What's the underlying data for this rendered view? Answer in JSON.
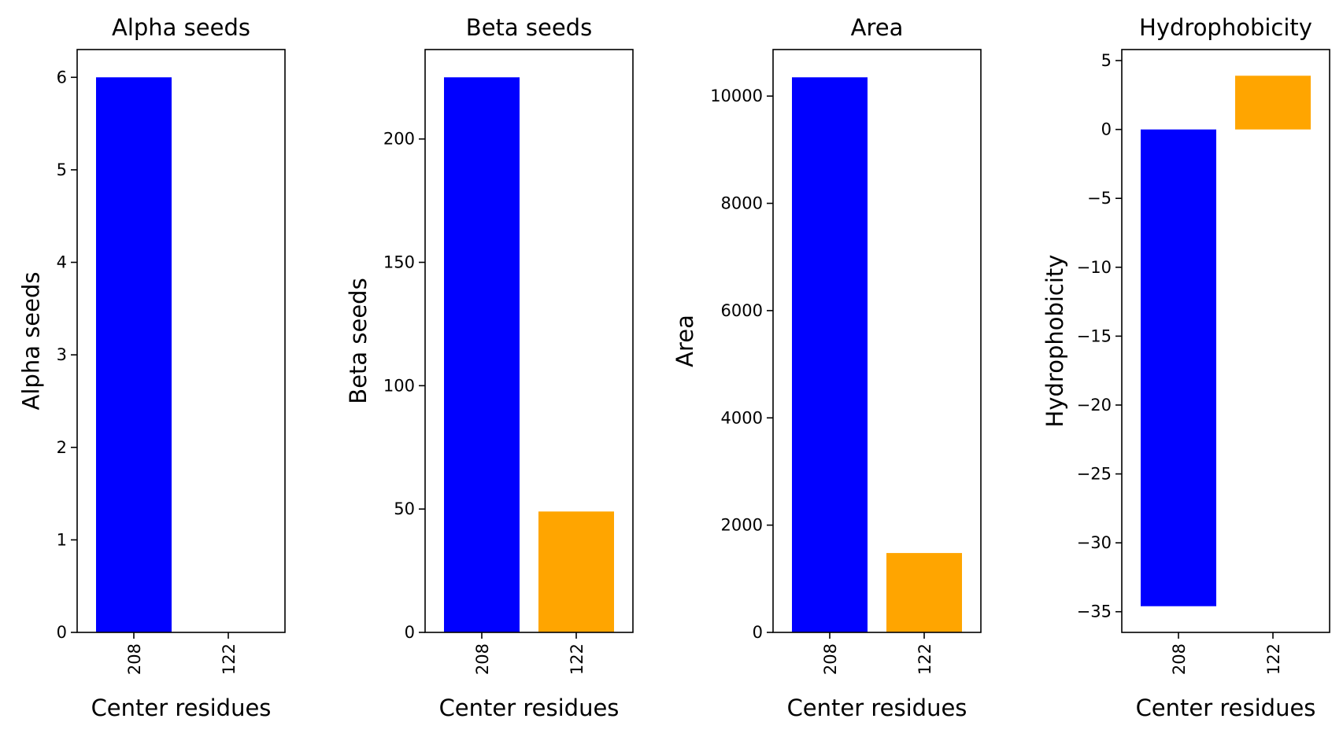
{
  "chart_data": [
    {
      "type": "bar",
      "title": "Alpha seeds",
      "xlabel": "Center residues",
      "ylabel": "Alpha seeds",
      "categories": [
        "208",
        "122"
      ],
      "values": [
        6,
        0
      ],
      "colors": [
        "#0000ff",
        "#ffa500"
      ],
      "ylim": [
        0,
        6.3
      ],
      "yticks": [
        0,
        1,
        2,
        3,
        4,
        5,
        6
      ],
      "ytick_labels": [
        "0",
        "1",
        "2",
        "3",
        "4",
        "5",
        "6"
      ],
      "grid": false
    },
    {
      "type": "bar",
      "title": "Beta seeds",
      "xlabel": "Center residues",
      "ylabel": "Beta seeds",
      "categories": [
        "208",
        "122"
      ],
      "values": [
        225,
        49
      ],
      "colors": [
        "#0000ff",
        "#ffa500"
      ],
      "ylim": [
        0,
        236.25
      ],
      "yticks": [
        0,
        50,
        100,
        150,
        200
      ],
      "ytick_labels": [
        "0",
        "50",
        "100",
        "150",
        "200"
      ],
      "grid": false
    },
    {
      "type": "bar",
      "title": "Area",
      "xlabel": "Center residues",
      "ylabel": "Area",
      "categories": [
        "208",
        "122"
      ],
      "values": [
        10350,
        1480
      ],
      "colors": [
        "#0000ff",
        "#ffa500"
      ],
      "ylim": [
        0,
        10867.5
      ],
      "yticks": [
        0,
        2000,
        4000,
        6000,
        8000,
        10000
      ],
      "ytick_labels": [
        "0",
        "2000",
        "4000",
        "6000",
        "8000",
        "10000"
      ],
      "grid": false
    },
    {
      "type": "bar",
      "title": "Hydrophobicity",
      "xlabel": "Center residues",
      "ylabel": "Hydrophobicity",
      "categories": [
        "208",
        "122"
      ],
      "values": [
        -34.6,
        3.9
      ],
      "colors": [
        "#0000ff",
        "#ffa500"
      ],
      "ylim": [
        -36.5,
        5.8
      ],
      "yticks": [
        -35,
        -30,
        -25,
        -20,
        -15,
        -10,
        -5,
        0,
        5
      ],
      "ytick_labels": [
        "−35",
        "−30",
        "−25",
        "−20",
        "−15",
        "−10",
        "−5",
        "0",
        "5"
      ],
      "grid": false
    }
  ]
}
